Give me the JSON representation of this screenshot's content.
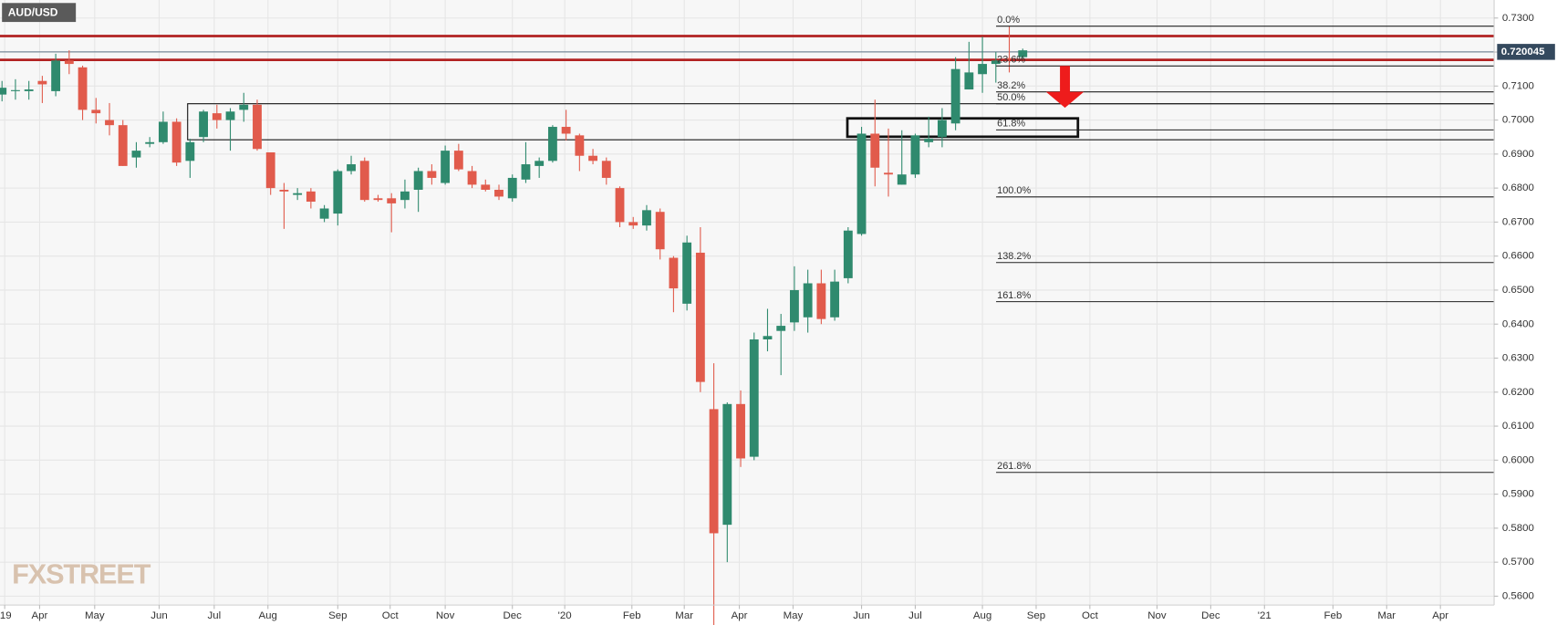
{
  "chart_data": {
    "type": "candlestick",
    "title": "AUD/USD",
    "watermark": "FXSTREET",
    "up_color": "#2f8a6e",
    "down_color": "#e15b4c",
    "grid": true,
    "open": [
      0.7075,
      0.7085,
      0.7085,
      0.7115,
      0.7085,
      0.7175,
      0.7155,
      0.703,
      0.7,
      0.6985,
      0.689,
      0.693,
      0.6935,
      0.6995,
      0.688,
      0.695,
      0.702,
      0.7,
      0.703,
      0.7045,
      0.6905,
      0.6795,
      0.678,
      0.679,
      0.671,
      0.6725,
      0.685,
      0.688,
      0.677,
      0.677,
      0.6765,
      0.6795,
      0.685,
      0.6815,
      0.691,
      0.685,
      0.681,
      0.6795,
      0.677,
      0.6825,
      0.6865,
      0.688,
      0.698,
      0.6955,
      0.6895,
      0.688,
      0.68,
      0.67,
      0.669,
      0.673,
      0.6595,
      0.646,
      0.661,
      0.615,
      0.581,
      0.6165,
      0.601,
      0.6355,
      0.638,
      0.6405,
      0.642,
      0.652,
      0.642,
      0.6535,
      0.6665,
      0.696,
      0.6845,
      0.681,
      0.684,
      0.6935,
      0.695,
      0.699,
      0.709,
      0.7135,
      0.7165,
      0.7182,
      0.7185
    ],
    "high": [
      0.7115,
      0.712,
      0.7115,
      0.713,
      0.7195,
      0.7205,
      0.716,
      0.7065,
      0.705,
      0.7,
      0.6935,
      0.695,
      0.7025,
      0.7005,
      0.6945,
      0.703,
      0.7045,
      0.7035,
      0.708,
      0.706,
      0.6905,
      0.6815,
      0.68,
      0.68,
      0.675,
      0.6855,
      0.6895,
      0.689,
      0.678,
      0.6785,
      0.6825,
      0.686,
      0.687,
      0.6925,
      0.693,
      0.6865,
      0.6825,
      0.681,
      0.684,
      0.6935,
      0.689,
      0.6985,
      0.703,
      0.696,
      0.6915,
      0.689,
      0.6805,
      0.6715,
      0.675,
      0.674,
      0.66,
      0.666,
      0.6685,
      0.6285,
      0.617,
      0.6205,
      0.6375,
      0.6445,
      0.643,
      0.657,
      0.656,
      0.656,
      0.656,
      0.6685,
      0.698,
      0.706,
      0.6975,
      0.697,
      0.696,
      0.701,
      0.7035,
      0.7185,
      0.723,
      0.7245,
      0.72,
      0.7275,
      0.721
    ],
    "low": [
      0.7055,
      0.706,
      0.706,
      0.705,
      0.707,
      0.7135,
      0.7,
      0.699,
      0.6955,
      0.6865,
      0.686,
      0.692,
      0.693,
      0.6865,
      0.683,
      0.6935,
      0.6975,
      0.691,
      0.6995,
      0.691,
      0.678,
      0.668,
      0.6765,
      0.674,
      0.67,
      0.669,
      0.684,
      0.676,
      0.676,
      0.667,
      0.674,
      0.673,
      0.681,
      0.681,
      0.685,
      0.68,
      0.679,
      0.6765,
      0.676,
      0.6815,
      0.683,
      0.6875,
      0.694,
      0.685,
      0.687,
      0.681,
      0.6685,
      0.668,
      0.6675,
      0.659,
      0.6435,
      0.644,
      0.62,
      0.551,
      0.57,
      0.598,
      0.6,
      0.632,
      0.625,
      0.638,
      0.6375,
      0.64,
      0.641,
      0.652,
      0.666,
      0.6805,
      0.6775,
      0.681,
      0.683,
      0.692,
      0.692,
      0.697,
      0.709,
      0.708,
      0.711,
      0.714,
      0.718
    ],
    "close": [
      0.7095,
      0.7088,
      0.709,
      0.7105,
      0.7175,
      0.7165,
      0.703,
      0.702,
      0.6985,
      0.6865,
      0.691,
      0.6935,
      0.6995,
      0.6875,
      0.6935,
      0.7025,
      0.7,
      0.7025,
      0.7045,
      0.6915,
      0.68,
      0.679,
      0.6785,
      0.676,
      0.674,
      0.685,
      0.687,
      0.6765,
      0.6765,
      0.6755,
      0.679,
      0.685,
      0.683,
      0.691,
      0.6855,
      0.681,
      0.6795,
      0.6775,
      0.683,
      0.687,
      0.688,
      0.698,
      0.696,
      0.6895,
      0.688,
      0.683,
      0.67,
      0.669,
      0.6735,
      0.662,
      0.6505,
      0.664,
      0.623,
      0.5785,
      0.6165,
      0.6005,
      0.6355,
      0.6365,
      0.6395,
      0.65,
      0.652,
      0.6415,
      0.6525,
      0.6675,
      0.696,
      0.686,
      0.684,
      0.684,
      0.6955,
      0.6945,
      0.7,
      0.715,
      0.714,
      0.7165,
      0.7175,
      0.7178,
      0.7205
    ],
    "xlim": [
      -0.15,
      111.1
    ],
    "xticks": [
      {
        "value": 0.2,
        "label": "'19"
      },
      {
        "value": 2.8,
        "label": "Apr"
      },
      {
        "value": 6.9,
        "label": "May"
      },
      {
        "value": 11.7,
        "label": "Jun"
      },
      {
        "value": 15.8,
        "label": "Jul"
      },
      {
        "value": 19.8,
        "label": "Aug"
      },
      {
        "value": 25.0,
        "label": "Sep"
      },
      {
        "value": 28.9,
        "label": "Oct"
      },
      {
        "value": 33.0,
        "label": "Nov"
      },
      {
        "value": 38.0,
        "label": "Dec"
      },
      {
        "value": 41.9,
        "label": "'20"
      },
      {
        "value": 46.9,
        "label": "Feb"
      },
      {
        "value": 50.8,
        "label": "Mar"
      },
      {
        "value": 54.9,
        "label": "Apr"
      },
      {
        "value": 58.9,
        "label": "May"
      },
      {
        "value": 64.0,
        "label": "Jun"
      },
      {
        "value": 68.0,
        "label": "Jul"
      },
      {
        "value": 73.0,
        "label": "Aug"
      },
      {
        "value": 77.0,
        "label": "Sep"
      },
      {
        "value": 81.0,
        "label": "Oct"
      },
      {
        "value": 86.0,
        "label": "Nov"
      },
      {
        "value": 90.0,
        "label": "Dec"
      },
      {
        "value": 94.0,
        "label": "'21"
      },
      {
        "value": 99.1,
        "label": "Feb"
      },
      {
        "value": 103.1,
        "label": "Mar"
      },
      {
        "value": 107.1,
        "label": "Apr"
      }
    ],
    "ylim": [
      0.5574,
      0.7353
    ],
    "yticks": [
      {
        "value": 0.73,
        "label": "0.7300"
      },
      {
        "value": 0.72,
        "label": "0.7200"
      },
      {
        "value": 0.71,
        "label": "0.7100"
      },
      {
        "value": 0.7,
        "label": "0.7000"
      },
      {
        "value": 0.69,
        "label": "0.6900"
      },
      {
        "value": 0.68,
        "label": "0.6800"
      },
      {
        "value": 0.67,
        "label": "0.6700"
      },
      {
        "value": 0.66,
        "label": "0.6600"
      },
      {
        "value": 0.65,
        "label": "0.6500"
      },
      {
        "value": 0.64,
        "label": "0.6400"
      },
      {
        "value": 0.63,
        "label": "0.6300"
      },
      {
        "value": 0.62,
        "label": "0.6200"
      },
      {
        "value": 0.61,
        "label": "0.6100"
      },
      {
        "value": 0.6,
        "label": "0.6000"
      },
      {
        "value": 0.59,
        "label": "0.5900"
      },
      {
        "value": 0.58,
        "label": "0.5800"
      },
      {
        "value": 0.57,
        "label": "0.5700"
      },
      {
        "value": 0.56,
        "label": "0.5600"
      }
    ],
    "last_price": 0.720045,
    "levels": {
      "color": "#b22222",
      "values": [
        0.7247,
        0.7177
      ]
    },
    "zones": [
      {
        "top": 0.7048,
        "bottom": 0.6942
      },
      {
        "top": 0.7005,
        "bottom": 0.6951
      }
    ],
    "fibonacci": [
      {
        "label": "0.0%",
        "value": 0.7276
      },
      {
        "label": "23.6%",
        "value": 0.7159
      },
      {
        "label": "38.2%",
        "value": 0.7083
      },
      {
        "label": "50.0%",
        "value": 0.7048
      },
      {
        "label": "61.8%",
        "value": 0.6971
      },
      {
        "label": "100.0%",
        "value": 0.6774
      },
      {
        "label": "138.2%",
        "value": 0.6581
      },
      {
        "label": "161.8%",
        "value": 0.6466
      },
      {
        "label": "261.8%",
        "value": 0.5964
      }
    ]
  }
}
